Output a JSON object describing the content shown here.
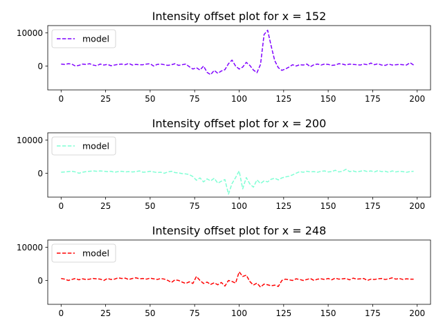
{
  "chart_data": [
    {
      "type": "line",
      "title": "Intensity offset plot for x = 152",
      "xlabel": "",
      "ylabel": "",
      "xlim": [
        -7.5,
        207.5
      ],
      "ylim": [
        -7200,
        12200
      ],
      "xticks": [
        0,
        25,
        50,
        75,
        100,
        125,
        150,
        175,
        200
      ],
      "yticks": [
        0,
        10000
      ],
      "grid": false,
      "legend": "upper left",
      "series": [
        {
          "name": "model",
          "color": "#7f00ff",
          "linestyle": "dashed",
          "x_start": 0,
          "x_step": 2,
          "y": [
            600,
            500,
            700,
            600,
            0,
            200,
            600,
            500,
            700,
            300,
            100,
            600,
            300,
            500,
            100,
            300,
            500,
            600,
            400,
            800,
            300,
            500,
            400,
            400,
            600,
            700,
            0,
            500,
            600,
            400,
            200,
            400,
            700,
            200,
            400,
            600,
            -200,
            -900,
            -500,
            -1200,
            0,
            -1900,
            -2600,
            -1300,
            -2200,
            -1500,
            -1100,
            700,
            1800,
            0,
            -900,
            -300,
            1100,
            200,
            -1200,
            -2000,
            500,
            9500,
            10800,
            6000,
            1600,
            -500,
            -1300,
            -900,
            -300,
            400,
            0,
            400,
            300,
            600,
            -200,
            400,
            600,
            300,
            600,
            500,
            200,
            300,
            700,
            600,
            300,
            600,
            500,
            400,
            300,
            600,
            400,
            900,
            400,
            700,
            300,
            200,
            600,
            300,
            400,
            500,
            400,
            300,
            1000,
            300
          ]
        }
      ]
    },
    {
      "type": "line",
      "title": "Intensity offset plot for x = 200",
      "xlabel": "",
      "ylabel": "",
      "xlim": [
        -7.5,
        207.5
      ],
      "ylim": [
        -7200,
        12200
      ],
      "xticks": [
        0,
        25,
        50,
        75,
        100,
        125,
        150,
        175,
        200
      ],
      "yticks": [
        0,
        10000
      ],
      "grid": false,
      "legend": "upper left",
      "series": [
        {
          "name": "model",
          "color": "#7fffd4",
          "linestyle": "dashed",
          "x_start": 0,
          "x_step": 2,
          "y": [
            300,
            400,
            500,
            600,
            400,
            0,
            300,
            500,
            600,
            700,
            600,
            700,
            600,
            500,
            600,
            300,
            500,
            600,
            400,
            500,
            400,
            500,
            700,
            300,
            400,
            600,
            400,
            200,
            300,
            0,
            400,
            600,
            200,
            100,
            -100,
            -200,
            -400,
            -1000,
            -2100,
            -1400,
            -2600,
            -1700,
            -2300,
            -1500,
            -3000,
            -2400,
            -1900,
            -6300,
            -3100,
            -1300,
            700,
            -4700,
            -1300,
            -3200,
            -4200,
            -2000,
            -3100,
            -2300,
            -2600,
            -1800,
            -1500,
            -2000,
            -1400,
            -1100,
            -900,
            -500,
            0,
            500,
            300,
            600,
            400,
            500,
            300,
            600,
            700,
            400,
            500,
            900,
            400,
            600,
            1200,
            500,
            700,
            400,
            600,
            800,
            500,
            700,
            400,
            800,
            500,
            600,
            300,
            700,
            400,
            600,
            500,
            300,
            500,
            600
          ]
        }
      ]
    },
    {
      "type": "line",
      "title": "Intensity offset plot for x = 248",
      "xlabel": "",
      "ylabel": "",
      "xlim": [
        -7.5,
        207.5
      ],
      "ylim": [
        -7200,
        12200
      ],
      "xticks": [
        0,
        25,
        50,
        75,
        100,
        125,
        150,
        175,
        200
      ],
      "yticks": [
        0,
        10000
      ],
      "grid": false,
      "legend": "upper left",
      "series": [
        {
          "name": "model",
          "color": "#ff0000",
          "linestyle": "dashed",
          "x_start": 0,
          "x_step": 2,
          "y": [
            600,
            400,
            0,
            300,
            600,
            200,
            500,
            300,
            400,
            600,
            500,
            400,
            0,
            600,
            300,
            400,
            800,
            600,
            700,
            300,
            600,
            800,
            500,
            600,
            400,
            700,
            500,
            300,
            600,
            400,
            0,
            -600,
            200,
            0,
            -500,
            -900,
            -400,
            -900,
            1200,
            0,
            -900,
            -500,
            -1200,
            -700,
            -1300,
            -600,
            -1700,
            0,
            -300,
            -800,
            2600,
            1200,
            1600,
            -300,
            -1400,
            -800,
            -2000,
            -1100,
            -1300,
            -1600,
            -1400,
            -1800,
            0,
            400,
            200,
            0,
            500,
            300,
            0,
            300,
            600,
            0,
            400,
            500,
            300,
            600,
            200,
            700,
            400,
            500,
            600,
            200,
            700,
            400,
            500,
            600,
            0,
            400,
            300,
            500,
            600,
            300,
            500,
            800,
            400,
            600,
            300,
            500,
            400,
            400
          ]
        }
      ]
    }
  ]
}
